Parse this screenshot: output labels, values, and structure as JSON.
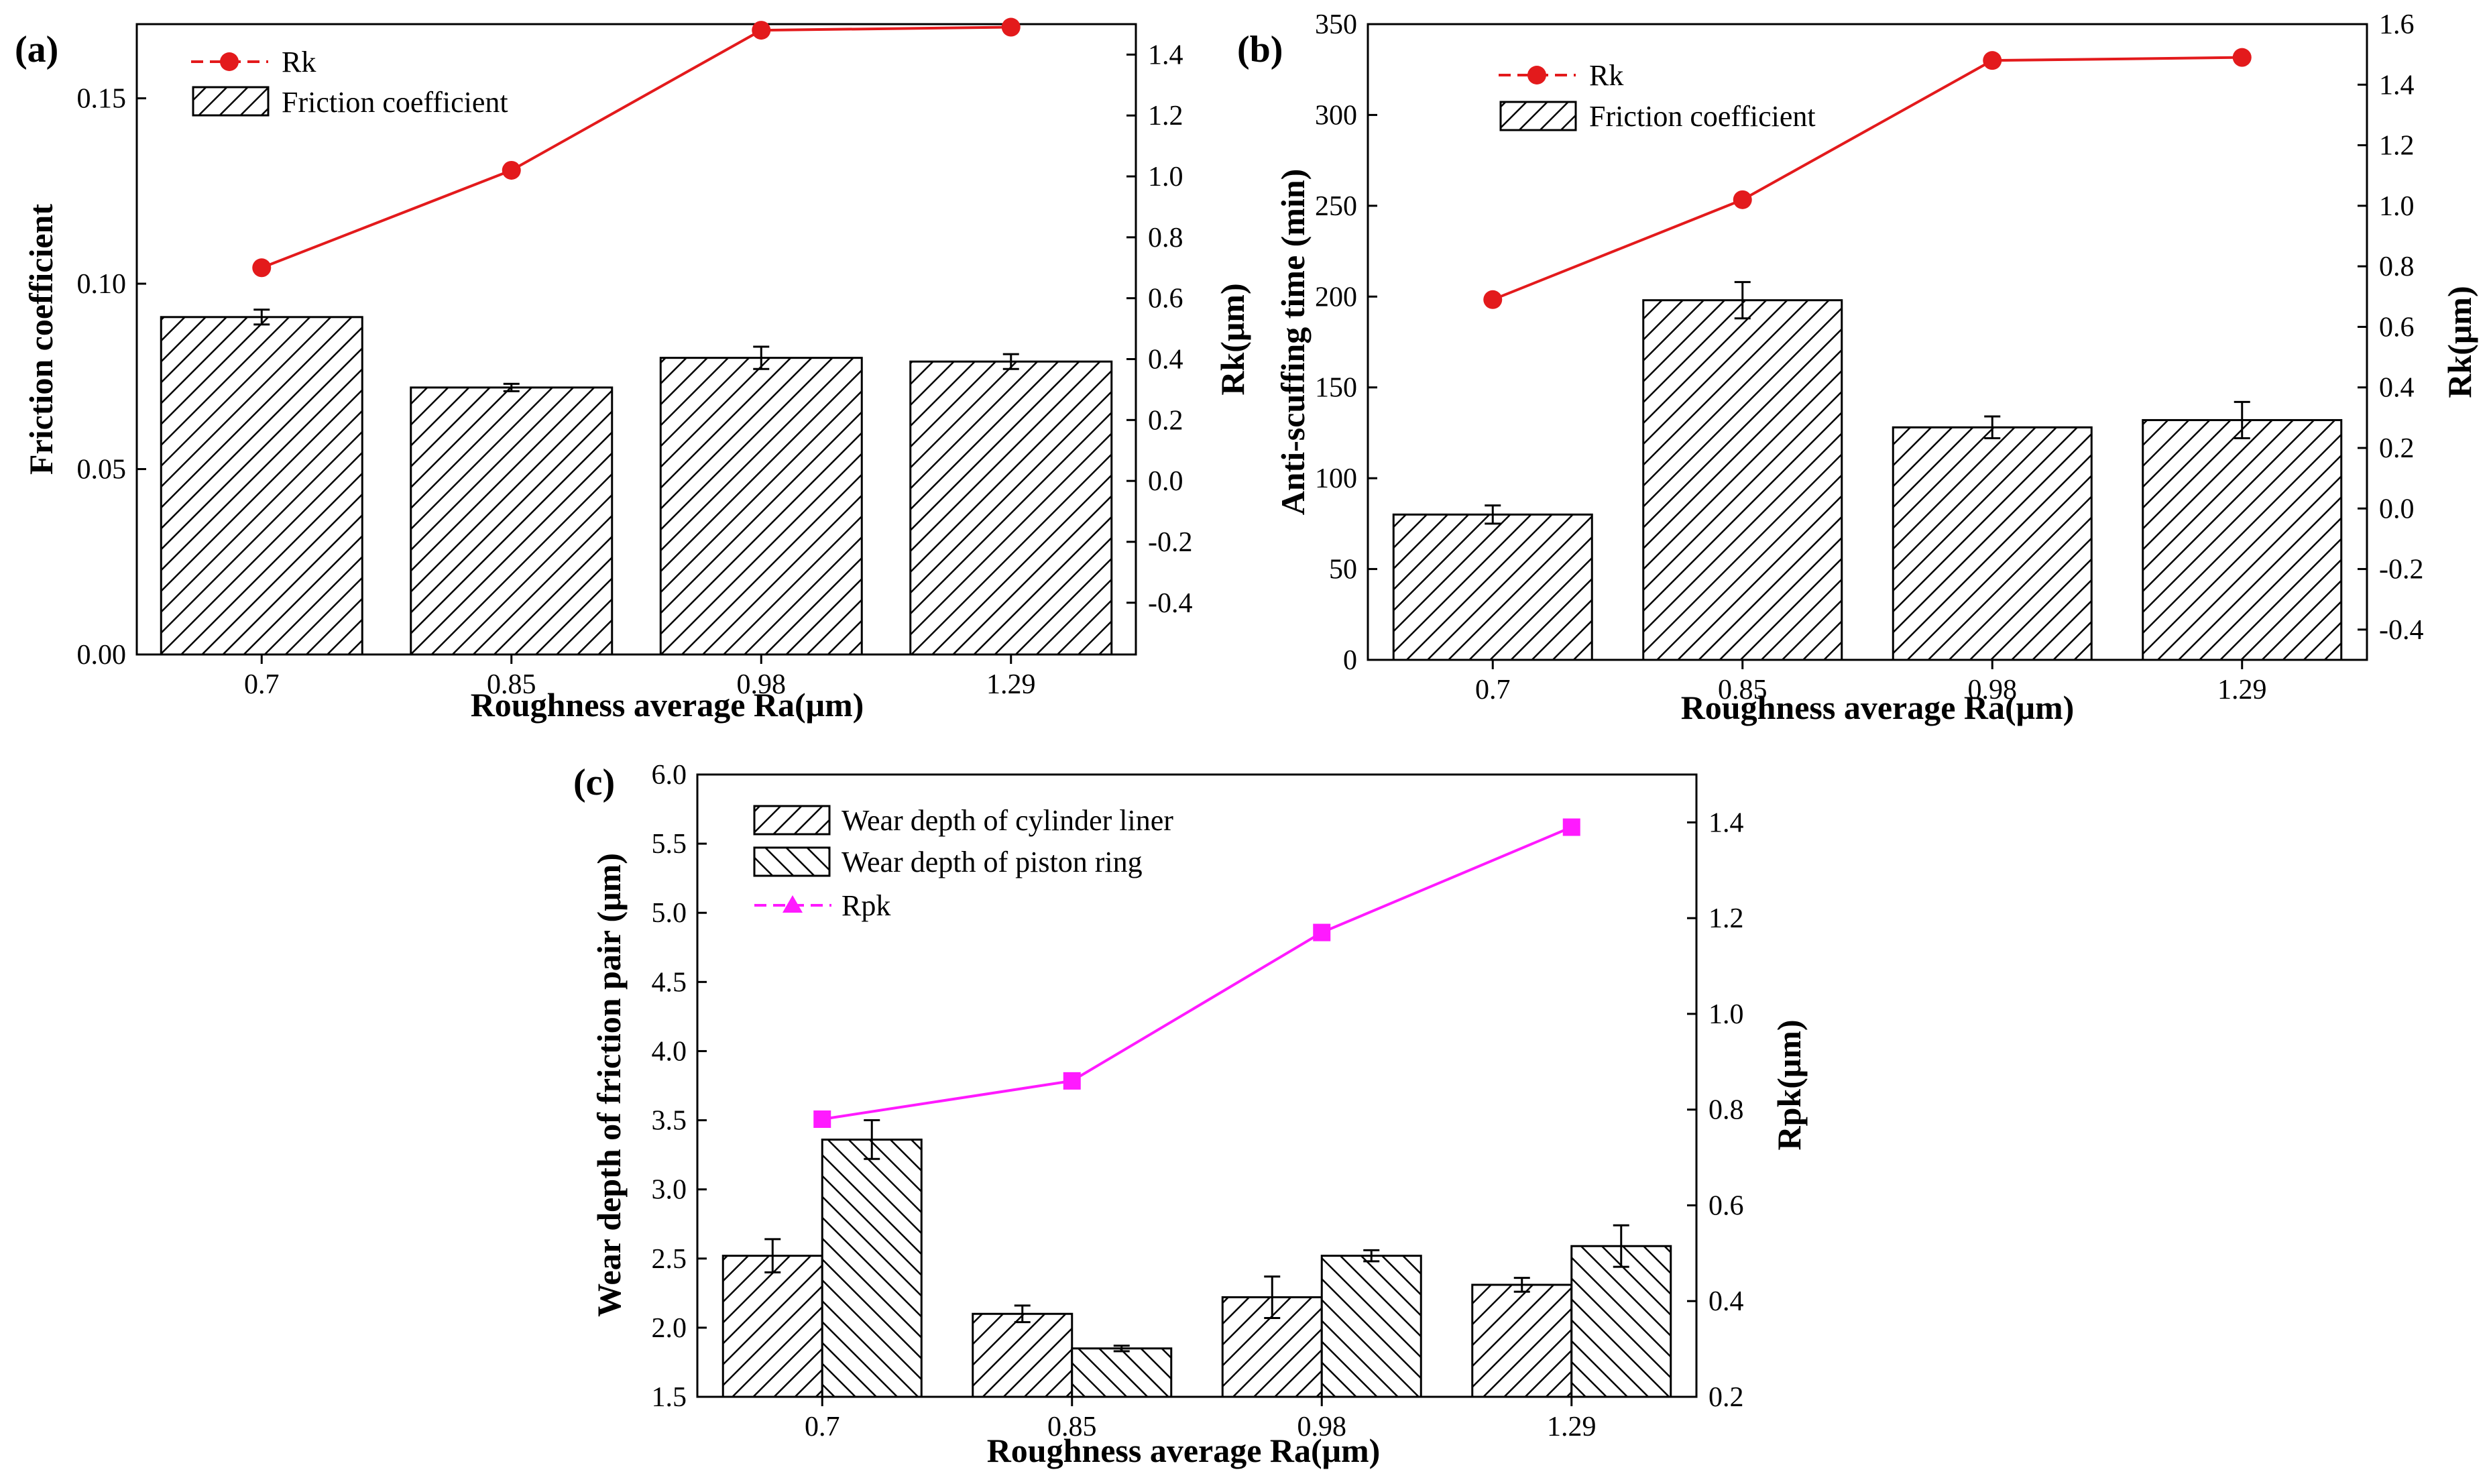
{
  "colors": {
    "rk": "#e31a1c",
    "rpk": "#ff1aff",
    "bar_stroke": "#000000"
  },
  "chart_data": [
    {
      "panel": "(a)",
      "type": "bar+line",
      "categories": [
        "0.7",
        "0.85",
        "0.98",
        "1.29"
      ],
      "xlabel": "Roughness average Ra(μm)",
      "ylabel": "Friction coefficient",
      "y2label": "Rk(μm)",
      "ylim": [
        0,
        0.17
      ],
      "yticks": [
        "0.00",
        "0.05",
        "0.10",
        "0.15"
      ],
      "y2lim": [
        -0.57,
        1.5
      ],
      "y2ticks": [
        "-0.4",
        "-0.2",
        "0.0",
        "0.2",
        "0.4",
        "0.6",
        "0.8",
        "1.0",
        "1.2",
        "1.4"
      ],
      "series": [
        {
          "name": "Friction coefficient",
          "kind": "bar",
          "hatch": "/",
          "values": [
            0.091,
            0.072,
            0.08,
            0.079
          ],
          "errors": [
            0.002,
            0.001,
            0.003,
            0.002
          ]
        }
      ],
      "lines": [
        {
          "name": "Rk",
          "axis": "y2",
          "marker": "circle",
          "color": "#e31a1c",
          "values": [
            0.7,
            1.02,
            1.48,
            1.49
          ]
        }
      ],
      "legend": [
        "Rk",
        "Friction coefficient"
      ]
    },
    {
      "panel": "(b)",
      "type": "bar+line",
      "categories": [
        "0.7",
        "0.85",
        "0.98",
        "1.29"
      ],
      "xlabel": "Roughness average Ra(μm)",
      "ylabel": "Anti-scuffing time (min)",
      "y2label": "Rk(μm)",
      "ylim": [
        0,
        350
      ],
      "yticks": [
        "0",
        "50",
        "100",
        "150",
        "200",
        "250",
        "300",
        "350"
      ],
      "y2lim": [
        -0.5,
        1.6
      ],
      "y2ticks": [
        "-0.4",
        "-0.2",
        "0.0",
        "0.2",
        "0.4",
        "0.6",
        "0.8",
        "1.0",
        "1.2",
        "1.4",
        "1.6"
      ],
      "series": [
        {
          "name": "Friction coefficient",
          "kind": "bar",
          "hatch": "/",
          "values": [
            80,
            198,
            128,
            132
          ],
          "errors": [
            5,
            10,
            6,
            10
          ]
        }
      ],
      "lines": [
        {
          "name": "Rk",
          "axis": "y2",
          "marker": "circle",
          "color": "#e31a1c",
          "values": [
            0.69,
            1.02,
            1.48,
            1.49
          ]
        }
      ],
      "legend": [
        "Rk",
        "Friction coefficient"
      ]
    },
    {
      "panel": "(c)",
      "type": "grouped-bar+line",
      "categories": [
        "0.7",
        "0.85",
        "0.98",
        "1.29"
      ],
      "xlabel": "Roughness average Ra(μm)",
      "ylabel": "Wear depth of friction pair (μm)",
      "y2label": "Rpk(μm)",
      "ylim": [
        1.5,
        6.0
      ],
      "yticks": [
        "1.5",
        "2.0",
        "2.5",
        "3.0",
        "3.5",
        "4.0",
        "4.5",
        "5.0",
        "5.5",
        "6.0"
      ],
      "y2lim": [
        0.2,
        1.5
      ],
      "y2ticks": [
        "0.2",
        "0.4",
        "0.6",
        "0.8",
        "1.0",
        "1.2",
        "1.4"
      ],
      "series": [
        {
          "name": "Wear depth of cylinder liner",
          "kind": "bar",
          "hatch": "/",
          "values": [
            2.52,
            2.1,
            2.22,
            2.31
          ],
          "errors": [
            0.12,
            0.06,
            0.15,
            0.05
          ]
        },
        {
          "name": "Wear depth of piston ring",
          "kind": "bar",
          "hatch": "\\",
          "values": [
            3.36,
            1.85,
            2.52,
            2.59
          ],
          "errors": [
            0.14,
            0.02,
            0.04,
            0.15
          ]
        }
      ],
      "lines": [
        {
          "name": "Rpk",
          "axis": "y2",
          "marker": "square",
          "legend_marker": "triangle",
          "color": "#ff1aff",
          "values": [
            0.78,
            0.86,
            1.17,
            1.39
          ]
        }
      ],
      "legend": [
        "Wear depth of cylinder liner",
        "Wear depth of piston ring",
        "Rpk"
      ]
    }
  ]
}
